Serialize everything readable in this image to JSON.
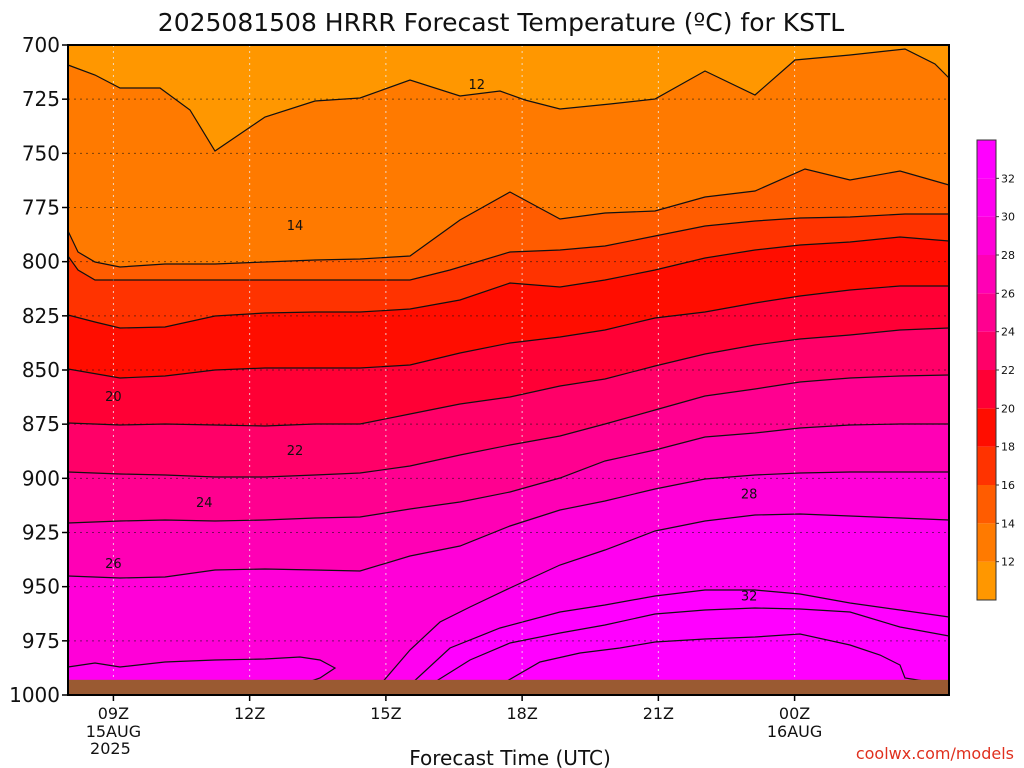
{
  "chart_data": {
    "type": "contour",
    "title": "2025081508 HRRR Forecast Temperature (ºC) for KSTL",
    "xlabel": "Forecast Time (UTC)",
    "credit": "coolwx.com/models",
    "x_ticks": [
      {
        "label": "09Z",
        "sub1": "15AUG",
        "sub2": "2025"
      },
      {
        "label": "12Z",
        "sub1": "",
        "sub2": ""
      },
      {
        "label": "15Z",
        "sub1": "",
        "sub2": ""
      },
      {
        "label": "18Z",
        "sub1": "",
        "sub2": ""
      },
      {
        "label": "21Z",
        "sub1": "",
        "sub2": ""
      },
      {
        "label": "00Z",
        "sub1": "16AUG",
        "sub2": ""
      }
    ],
    "xlim_hours": [
      8,
      27.4
    ],
    "x_tick_hours": [
      9,
      12,
      15,
      18,
      21,
      24
    ],
    "y_axis": {
      "label": "",
      "scale": "pressure (hPa), inverted",
      "ylim": [
        1000,
        700
      ],
      "ticks": [
        700,
        725,
        750,
        775,
        800,
        825,
        850,
        875,
        900,
        925,
        950,
        975,
        1000
      ]
    },
    "grid": true,
    "colorbar": {
      "levels": [
        12,
        14,
        16,
        18,
        20,
        22,
        24,
        26,
        28,
        30,
        32
      ],
      "range": [
        10,
        34
      ],
      "colors": [
        "#ff9700",
        "#ff7a00",
        "#ff5c00",
        "#ff3300",
        "#ff0d00",
        "#ff0035",
        "#ff0068",
        "#ff0090",
        "#ff00b5",
        "#ff00d8",
        "#ff00f0",
        "#ff00ff"
      ]
    },
    "contour_levels": [
      12,
      14,
      16,
      18,
      20,
      22,
      24,
      26,
      28,
      30,
      32
    ],
    "contour_labels": [
      {
        "value": "12",
        "hour": 17,
        "p": 718
      },
      {
        "value": "14",
        "hour": 13,
        "p": 783
      },
      {
        "value": "20",
        "hour": 9,
        "p": 862
      },
      {
        "value": "22",
        "hour": 13,
        "p": 887
      },
      {
        "value": "24",
        "hour": 11,
        "p": 911
      },
      {
        "value": "26",
        "hour": 9,
        "p": 939
      },
      {
        "value": "28",
        "hour": 23,
        "p": 907
      },
      {
        "value": "32",
        "hour": 23,
        "p": 954
      }
    ],
    "ground_color": "#9a5a32",
    "ground_top_p": 993
  }
}
